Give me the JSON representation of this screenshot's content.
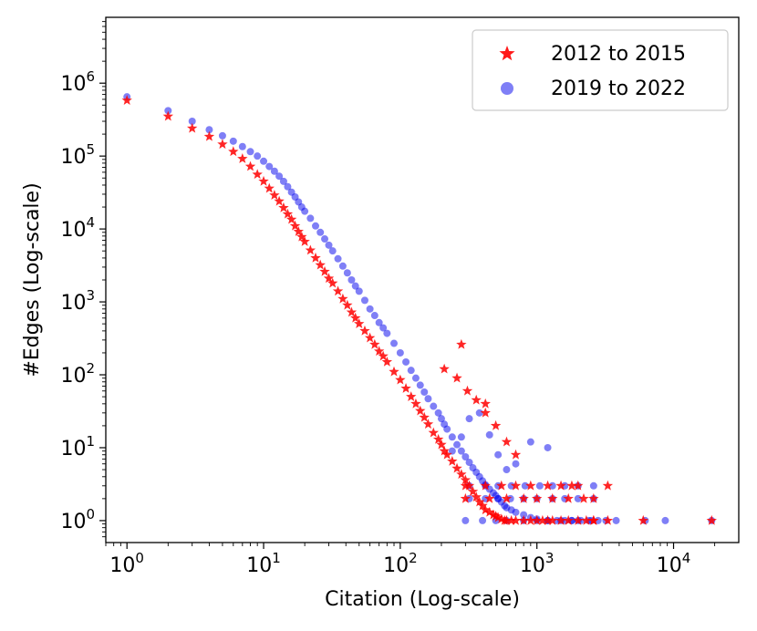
{
  "chart_data": {
    "type": "scatter",
    "title": "",
    "xlabel": "Citation (Log-scale)",
    "ylabel": "#Edges (Log-scale)",
    "xscale": "log",
    "yscale": "log",
    "xlim": [
      0.7,
      30000
    ],
    "ylim": [
      0.5,
      8000000
    ],
    "xticks": [
      {
        "value": 1,
        "base": "10",
        "exp": "0"
      },
      {
        "value": 10,
        "base": "10",
        "exp": "1"
      },
      {
        "value": 100,
        "base": "10",
        "exp": "2"
      },
      {
        "value": 1000,
        "base": "10",
        "exp": "3"
      },
      {
        "value": 10000,
        "base": "10",
        "exp": "4"
      }
    ],
    "yticks": [
      {
        "value": 1,
        "base": "10",
        "exp": "0"
      },
      {
        "value": 10,
        "base": "10",
        "exp": "1"
      },
      {
        "value": 100,
        "base": "10",
        "exp": "2"
      },
      {
        "value": 1000,
        "base": "10",
        "exp": "3"
      },
      {
        "value": 10000,
        "base": "10",
        "exp": "4"
      },
      {
        "value": 100000,
        "base": "10",
        "exp": "5"
      },
      {
        "value": 1000000,
        "base": "10",
        "exp": "6"
      }
    ],
    "legend_position": "upper-right",
    "series": [
      {
        "name": "2012 to 2015",
        "marker": "star",
        "color": "#ff0000",
        "x": [
          1,
          2,
          3,
          4,
          5,
          6,
          7,
          8,
          9,
          10,
          11,
          12,
          13,
          14,
          15,
          16,
          17,
          18,
          19,
          20,
          22,
          24,
          26,
          28,
          30,
          32,
          35,
          38,
          41,
          44,
          47,
          50,
          55,
          60,
          65,
          70,
          75,
          80,
          90,
          100,
          110,
          120,
          130,
          140,
          150,
          160,
          175,
          190,
          200,
          210,
          220,
          240,
          260,
          280,
          300,
          320,
          340,
          360,
          380,
          400,
          420,
          450,
          480,
          500,
          520,
          550,
          580,
          600,
          650,
          700,
          800,
          900,
          1000,
          1100,
          1200,
          1300,
          1500,
          1700,
          2000,
          2300,
          2600,
          3300,
          6000,
          19000,
          300,
          450,
          600,
          800,
          1000,
          1300,
          1700,
          2200,
          2600,
          300,
          420,
          550,
          700,
          900,
          1200,
          1500,
          1800,
          2000,
          2600,
          3300,
          210,
          260,
          310,
          360,
          420,
          500,
          600,
          700,
          280,
          420
        ],
        "y": [
          580000,
          350000,
          240000,
          185000,
          145000,
          115000,
          92000,
          72000,
          56000,
          45000,
          36000,
          29000,
          24000,
          19500,
          16000,
          13500,
          11000,
          9200,
          7800,
          6700,
          5100,
          4000,
          3200,
          2600,
          2100,
          1800,
          1400,
          1100,
          900,
          720,
          600,
          500,
          400,
          320,
          260,
          210,
          180,
          150,
          110,
          85,
          65,
          50,
          40,
          32,
          26,
          21,
          16,
          13,
          11,
          9,
          8,
          6.5,
          5.2,
          4.3,
          3.6,
          3.0,
          2.5,
          2.1,
          1.8,
          1.6,
          1.4,
          1.3,
          1.2,
          1.15,
          1.1,
          1.05,
          1.0,
          1.0,
          1.0,
          1.0,
          1.0,
          1.0,
          1.0,
          1.0,
          1.0,
          1.0,
          1.0,
          1.0,
          1.0,
          1.0,
          1.0,
          1.0,
          1.0,
          1.0,
          2,
          2,
          2,
          2,
          2,
          2,
          2,
          2,
          2,
          3,
          3,
          3,
          3,
          3,
          3,
          3,
          3,
          3,
          1,
          3,
          120,
          90,
          60,
          45,
          30,
          20,
          12,
          8,
          260,
          40
        ]
      },
      {
        "name": "2019 to 2022",
        "marker": "circle",
        "color": "#0000ee",
        "x": [
          1,
          2,
          3,
          4,
          5,
          6,
          7,
          8,
          9,
          10,
          11,
          12,
          13,
          14,
          15,
          16,
          17,
          18,
          19,
          20,
          22,
          24,
          26,
          28,
          30,
          32,
          35,
          38,
          41,
          44,
          47,
          50,
          55,
          60,
          65,
          70,
          75,
          80,
          90,
          100,
          110,
          120,
          130,
          140,
          150,
          160,
          175,
          190,
          200,
          210,
          220,
          240,
          260,
          280,
          300,
          320,
          340,
          360,
          380,
          400,
          420,
          450,
          480,
          500,
          520,
          550,
          580,
          600,
          650,
          700,
          800,
          900,
          1000,
          1200,
          1400,
          1600,
          1800,
          2000,
          2400,
          2800,
          3200,
          3800,
          6200,
          8700,
          19000,
          300,
          400,
          500,
          600,
          800,
          1000,
          1200,
          1500,
          1800,
          2100,
          2500,
          320,
          420,
          520,
          640,
          800,
          1000,
          1300,
          1600,
          2000,
          2600,
          320,
          420,
          520,
          650,
          820,
          1050,
          1300,
          1600,
          2000,
          2600,
          240,
          280,
          320,
          380,
          450,
          520,
          600,
          700,
          900,
          1200
        ],
        "y": [
          650000,
          420000,
          300000,
          230000,
          190000,
          160000,
          135000,
          115000,
          100000,
          85000,
          72000,
          62000,
          53000,
          45000,
          38000,
          32000,
          27500,
          23500,
          20000,
          17500,
          14000,
          11000,
          9000,
          7300,
          6000,
          5000,
          3900,
          3100,
          2500,
          2000,
          1650,
          1400,
          1050,
          800,
          650,
          520,
          440,
          370,
          270,
          200,
          150,
          115,
          90,
          72,
          58,
          47,
          37,
          30,
          25,
          21,
          18,
          14,
          11,
          9,
          7.5,
          6.3,
          5.3,
          4.6,
          4.0,
          3.5,
          3.1,
          2.7,
          2.4,
          2.2,
          2.0,
          1.8,
          1.6,
          1.5,
          1.4,
          1.3,
          1.2,
          1.1,
          1.05,
          1.0,
          1.0,
          1.0,
          1.0,
          1.0,
          1.0,
          1.0,
          1.0,
          1.0,
          1.0,
          1.0,
          1.0,
          1,
          1,
          1,
          1,
          1,
          1,
          1,
          1,
          1,
          1,
          1,
          2,
          2,
          2,
          2,
          2,
          2,
          2,
          2,
          2,
          2,
          3,
          3,
          3,
          3,
          3,
          3,
          3,
          3,
          3,
          3,
          9,
          14,
          25,
          30,
          15,
          8,
          5,
          6,
          12,
          10
        ]
      }
    ]
  }
}
